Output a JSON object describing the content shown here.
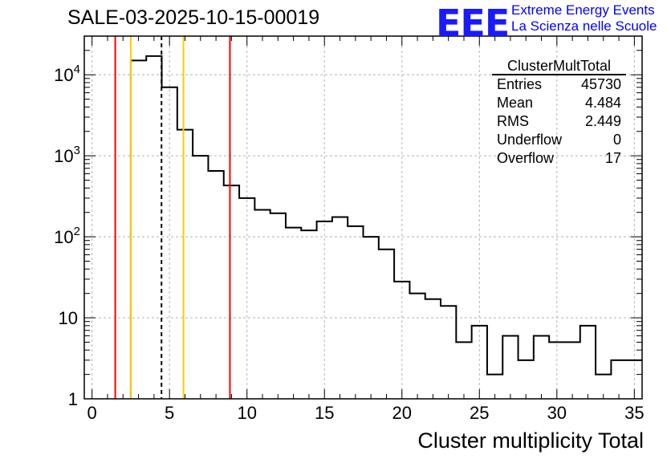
{
  "title": "SALE-03-2025-10-15-00019",
  "logo": {
    "text": "EEE",
    "line1": "Extreme Energy Events",
    "line2": "La Scienza nelle Scuole",
    "color": "#1a1aff"
  },
  "stats": {
    "name": "ClusterMultTotal",
    "rows": [
      {
        "label": "Entries",
        "value": "45730"
      },
      {
        "label": "Mean",
        "value": "4.484"
      },
      {
        "label": "RMS",
        "value": "2.449"
      },
      {
        "label": "Underflow",
        "value": "0"
      },
      {
        "label": "Overflow",
        "value": "17"
      }
    ]
  },
  "chart_data": {
    "type": "histogram",
    "title": "SALE-03-2025-10-15-00019",
    "xlabel": "Cluster multiplicity Total",
    "ylabel": "",
    "yscale": "log",
    "xlim": [
      -0.5,
      35.5
    ],
    "ylim": [
      1,
      30000
    ],
    "grid": true,
    "bin_edges": [
      2.5,
      3.5,
      4.5,
      5.5,
      6.5,
      7.5,
      8.5,
      9.5,
      10.5,
      11.5,
      12.5,
      13.5,
      14.5,
      15.5,
      16.5,
      17.5,
      18.5,
      19.5,
      20.5,
      21.5,
      22.5,
      23.5,
      24.5,
      25.5,
      26.5,
      27.5,
      28.5,
      29.5,
      30.5,
      31.5,
      32.5,
      33.5,
      34.5,
      35.5
    ],
    "values": [
      15000,
      17000,
      7000,
      2100,
      1000,
      650,
      430,
      300,
      215,
      195,
      130,
      120,
      155,
      175,
      135,
      100,
      70,
      28,
      20,
      17,
      14,
      5,
      8,
      2,
      6,
      3,
      6,
      5,
      5,
      8,
      2,
      3,
      3
    ],
    "x_ticks": [
      "0",
      "5",
      "10",
      "15",
      "20",
      "25",
      "30",
      "35"
    ],
    "x_tick_values": [
      0,
      5,
      10,
      15,
      20,
      25,
      30,
      35
    ],
    "y_ticks": [
      "1",
      "10",
      "10^2",
      "10^3",
      "10^4"
    ],
    "y_tick_values": [
      1,
      10,
      100,
      1000,
      10000
    ],
    "vertical_lines": [
      {
        "x": 1.5,
        "color": "#ff0000",
        "style": "solid"
      },
      {
        "x": 2.5,
        "color": "#ffcc00",
        "style": "solid"
      },
      {
        "x": 4.484,
        "color": "#000000",
        "style": "dashed"
      },
      {
        "x": 5.9,
        "color": "#ffcc00",
        "style": "solid"
      },
      {
        "x": 8.9,
        "color": "#ff0000",
        "style": "solid"
      }
    ]
  }
}
